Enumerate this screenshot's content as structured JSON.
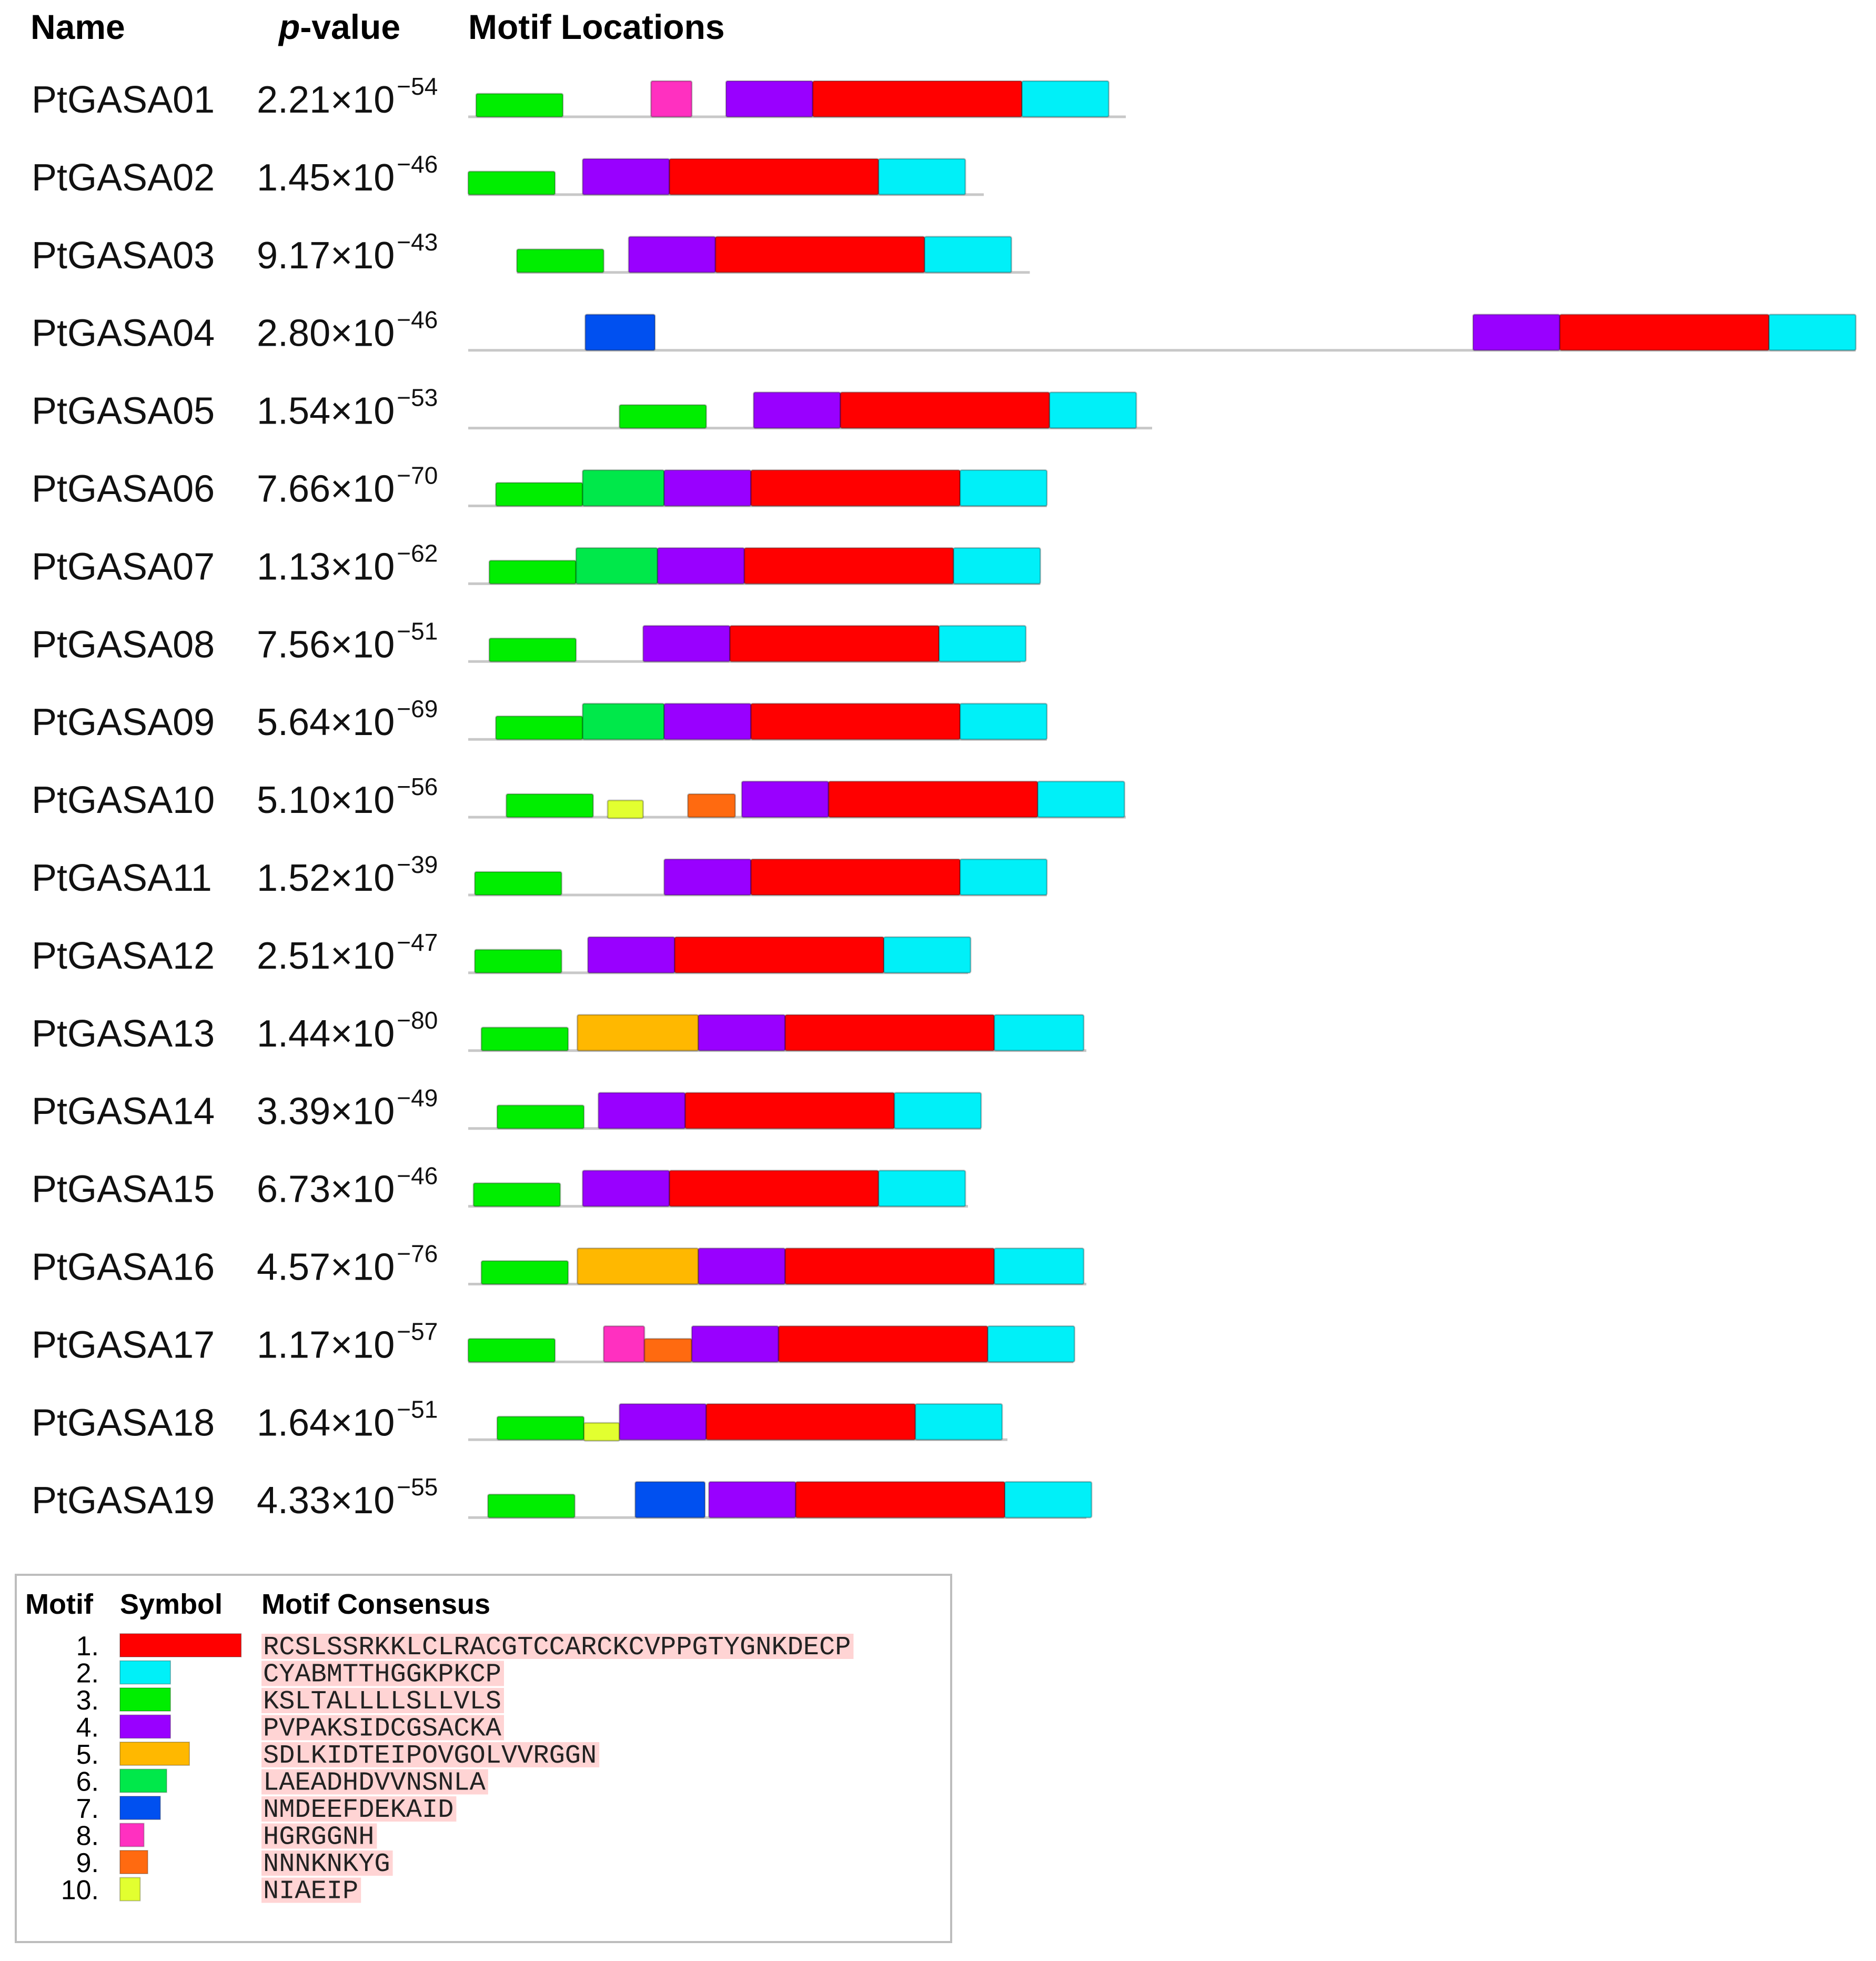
{
  "headers": {
    "name": "Name",
    "pvalue_p": "p",
    "pvalue_rest": "-value",
    "motif_locations": "Motif Locations"
  },
  "motif_colors": {
    "1": "#ff0000",
    "2": "#00f0f8",
    "3": "#00ee00",
    "4": "#9900ff",
    "5": "#ffb800",
    "6": "#00e84a",
    "7": "#0050f0",
    "8": "#ff30c0",
    "9": "#ff6a10",
    "10": "#e2ff30"
  },
  "sequences": [
    {
      "name": "PtGASA01",
      "pval_mantissa": "2.21",
      "pval_exponent": "−54",
      "line_start": 0,
      "line_end": 500,
      "motifs": [
        [
          3,
          6,
          66
        ],
        [
          8,
          139,
          31
        ],
        [
          4,
          196,
          66
        ],
        [
          1,
          262,
          159
        ],
        [
          2,
          421,
          66
        ]
      ]
    },
    {
      "name": "PtGASA02",
      "pval_mantissa": "1.45",
      "pval_exponent": "−46",
      "line_start": 0,
      "line_end": 392,
      "motifs": [
        [
          3,
          0,
          66
        ],
        [
          4,
          87,
          66
        ],
        [
          1,
          153,
          159
        ],
        [
          2,
          312,
          66
        ]
      ]
    },
    {
      "name": "PtGASA03",
      "pval_mantissa": "9.17",
      "pval_exponent": "−43",
      "line_start": 37,
      "line_end": 427,
      "motifs": [
        [
          3,
          37,
          66
        ],
        [
          4,
          122,
          66
        ],
        [
          1,
          188,
          159
        ],
        [
          2,
          347,
          66
        ]
      ]
    },
    {
      "name": "PtGASA04",
      "pval_mantissa": "2.80",
      "pval_exponent": "−46",
      "line_start": 0,
      "line_end": 1055,
      "motifs": [
        [
          7,
          89,
          53
        ],
        [
          4,
          764,
          66
        ],
        [
          1,
          830,
          159
        ],
        [
          2,
          989,
          66
        ]
      ]
    },
    {
      "name": "PtGASA05",
      "pval_mantissa": "1.54",
      "pval_exponent": "−53",
      "line_start": 0,
      "line_end": 520,
      "motifs": [
        [
          3,
          115,
          66
        ],
        [
          4,
          217,
          66
        ],
        [
          1,
          283,
          159
        ],
        [
          2,
          442,
          66
        ]
      ]
    },
    {
      "name": "PtGASA06",
      "pval_mantissa": "7.66",
      "pval_exponent": "−70",
      "line_start": 0,
      "line_end": 440,
      "motifs": [
        [
          3,
          21,
          66
        ],
        [
          6,
          87,
          62
        ],
        [
          4,
          149,
          66
        ],
        [
          1,
          215,
          159
        ],
        [
          2,
          374,
          66
        ]
      ]
    },
    {
      "name": "PtGASA07",
      "pval_mantissa": "1.13",
      "pval_exponent": "−62",
      "line_start": 0,
      "line_end": 435,
      "motifs": [
        [
          3,
          16,
          66
        ],
        [
          6,
          82,
          62
        ],
        [
          4,
          144,
          66
        ],
        [
          1,
          210,
          159
        ],
        [
          2,
          369,
          66
        ]
      ]
    },
    {
      "name": "PtGASA08",
      "pval_mantissa": "7.56",
      "pval_exponent": "−51",
      "line_start": 0,
      "line_end": 420,
      "motifs": [
        [
          3,
          16,
          66
        ],
        [
          4,
          133,
          66
        ],
        [
          1,
          199,
          159
        ],
        [
          2,
          358,
          66
        ]
      ]
    },
    {
      "name": "PtGASA09",
      "pval_mantissa": "5.64",
      "pval_exponent": "−69",
      "line_start": 0,
      "line_end": 440,
      "motifs": [
        [
          3,
          21,
          66
        ],
        [
          6,
          87,
          62
        ],
        [
          4,
          149,
          66
        ],
        [
          1,
          215,
          159
        ],
        [
          2,
          374,
          66
        ]
      ]
    },
    {
      "name": "PtGASA10",
      "pval_mantissa": "5.10",
      "pval_exponent": "−56",
      "line_start": 0,
      "line_end": 500,
      "motifs": [
        [
          3,
          29,
          66
        ],
        [
          10,
          106,
          27
        ],
        [
          9,
          167,
          36
        ],
        [
          4,
          208,
          66
        ],
        [
          1,
          274,
          159
        ],
        [
          2,
          433,
          66
        ]
      ]
    },
    {
      "name": "PtGASA11",
      "pval_mantissa": "1.52",
      "pval_exponent": "−39",
      "line_start": 0,
      "line_end": 440,
      "motifs": [
        [
          3,
          5,
          66
        ],
        [
          4,
          149,
          66
        ],
        [
          1,
          215,
          159
        ],
        [
          2,
          374,
          66
        ]
      ]
    },
    {
      "name": "PtGASA12",
      "pval_mantissa": "2.51",
      "pval_exponent": "−47",
      "line_start": 0,
      "line_end": 380,
      "motifs": [
        [
          3,
          5,
          66
        ],
        [
          4,
          91,
          66
        ],
        [
          1,
          157,
          159
        ],
        [
          2,
          316,
          66
        ]
      ]
    },
    {
      "name": "PtGASA13",
      "pval_mantissa": "1.44",
      "pval_exponent": "−80",
      "line_start": 0,
      "line_end": 470,
      "motifs": [
        [
          3,
          10,
          66
        ],
        [
          5,
          83,
          92
        ],
        [
          4,
          175,
          66
        ],
        [
          1,
          241,
          159
        ],
        [
          2,
          400,
          68
        ]
      ]
    },
    {
      "name": "PtGASA14",
      "pval_mantissa": "3.39",
      "pval_exponent": "−49",
      "line_start": 0,
      "line_end": 390,
      "motifs": [
        [
          3,
          22,
          66
        ],
        [
          4,
          99,
          66
        ],
        [
          1,
          165,
          159
        ],
        [
          2,
          324,
          66
        ]
      ]
    },
    {
      "name": "PtGASA15",
      "pval_mantissa": "6.73",
      "pval_exponent": "−46",
      "line_start": 0,
      "line_end": 380,
      "motifs": [
        [
          3,
          4,
          66
        ],
        [
          4,
          87,
          66
        ],
        [
          1,
          153,
          159
        ],
        [
          2,
          312,
          66
        ]
      ]
    },
    {
      "name": "PtGASA16",
      "pval_mantissa": "4.57",
      "pval_exponent": "−76",
      "line_start": 0,
      "line_end": 470,
      "motifs": [
        [
          3,
          10,
          66
        ],
        [
          5,
          83,
          92
        ],
        [
          4,
          175,
          66
        ],
        [
          1,
          241,
          159
        ],
        [
          2,
          400,
          68
        ]
      ]
    },
    {
      "name": "PtGASA17",
      "pval_mantissa": "1.17",
      "pval_exponent": "−57",
      "line_start": 0,
      "line_end": 460,
      "motifs": [
        [
          3,
          0,
          66
        ],
        [
          8,
          103,
          31
        ],
        [
          9,
          134,
          36
        ],
        [
          4,
          170,
          66
        ],
        [
          1,
          236,
          159
        ],
        [
          2,
          395,
          66
        ]
      ]
    },
    {
      "name": "PtGASA18",
      "pval_mantissa": "1.64",
      "pval_exponent": "−51",
      "line_start": 0,
      "line_end": 410,
      "motifs": [
        [
          3,
          22,
          66
        ],
        [
          10,
          88,
          27
        ],
        [
          4,
          115,
          66
        ],
        [
          1,
          181,
          159
        ],
        [
          2,
          340,
          66
        ]
      ]
    },
    {
      "name": "PtGASA19",
      "pval_mantissa": "4.33",
      "pval_exponent": "−55",
      "line_start": 0,
      "line_end": 470,
      "motifs": [
        [
          3,
          15,
          66
        ],
        [
          7,
          127,
          53
        ],
        [
          4,
          183,
          66
        ],
        [
          1,
          249,
          159
        ],
        [
          2,
          408,
          66
        ]
      ]
    }
  ],
  "legend": {
    "header_motif": "Motif",
    "header_symbol": "Symbol",
    "header_consensus": "Motif Consensus",
    "items": [
      {
        "num": "1.",
        "motif": 1,
        "length": 96,
        "consensus": "RCSLSSRKKLCLRACGTCCARCKCVPPGTYGNKDECP"
      },
      {
        "num": "2.",
        "motif": 2,
        "length": 40,
        "consensus": "CYABMTTHGGKPKCP"
      },
      {
        "num": "3.",
        "motif": 3,
        "length": 40,
        "consensus": "KSLTALLLLSLLVLS"
      },
      {
        "num": "4.",
        "motif": 4,
        "length": 40,
        "consensus": "PVPAKSIDCGSACKA"
      },
      {
        "num": "5.",
        "motif": 5,
        "length": 55,
        "consensus": "SDLKIDTEIPOVGOLVVRGGN"
      },
      {
        "num": "6.",
        "motif": 6,
        "length": 37,
        "consensus": "LAEADHDVVNSNLA"
      },
      {
        "num": "7.",
        "motif": 7,
        "length": 32,
        "consensus": "NMDEEFDEKAID"
      },
      {
        "num": "8.",
        "motif": 8,
        "length": 19,
        "consensus": "HGRGGNH"
      },
      {
        "num": "9.",
        "motif": 9,
        "length": 22,
        "consensus": "NNNKNKYG"
      },
      {
        "num": "10.",
        "motif": 10,
        "length": 16,
        "consensus": "NIAEIP"
      }
    ]
  }
}
